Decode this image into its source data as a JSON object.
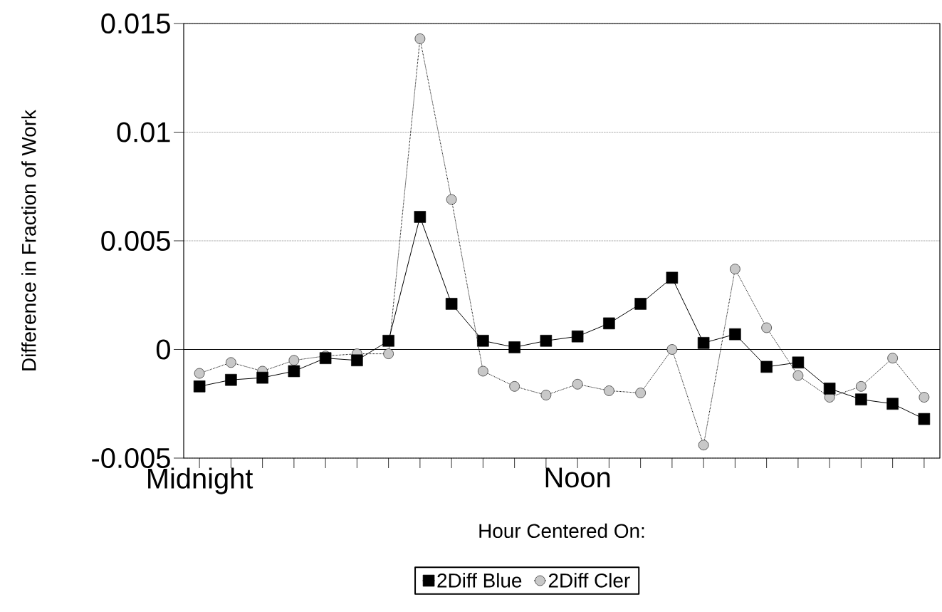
{
  "chart_data": {
    "type": "line",
    "xlabel": "Hour Centered On:",
    "ylabel": "Difference in Fraction of Work",
    "categories": [
      "Midnight",
      null,
      null,
      null,
      null,
      null,
      null,
      null,
      null,
      null,
      null,
      null,
      "Noon",
      null,
      null,
      null,
      null,
      null,
      null,
      null,
      null,
      null,
      null,
      null
    ],
    "series": [
      {
        "name": "2Diff Blue",
        "color": "#000000",
        "marker": "square",
        "line_style": "solid",
        "values": [
          -0.0017,
          -0.0014,
          -0.0013,
          -0.001,
          -0.0004,
          -0.0005,
          0.0004,
          0.0061,
          0.0021,
          0.0004,
          0.0001,
          0.0004,
          0.0006,
          0.0012,
          0.0021,
          0.0033,
          0.0003,
          0.0007,
          -0.0008,
          -0.0006,
          -0.0018,
          -0.0023,
          -0.0025,
          -0.0032
        ]
      },
      {
        "name": "2Diff Cler",
        "color": "#c8c8c8",
        "marker": "circle",
        "line_style": "dotted",
        "values": [
          -0.0011,
          -0.0006,
          -0.001,
          -0.0005,
          -0.0003,
          -0.0002,
          -0.0002,
          0.0143,
          0.0069,
          -0.001,
          -0.0017,
          -0.0021,
          -0.0016,
          -0.0019,
          -0.002,
          0.0,
          -0.0044,
          0.0037,
          0.001,
          -0.0012,
          -0.0022,
          -0.0017,
          -0.0004,
          -0.0022
        ]
      }
    ],
    "ylim": [
      -0.005,
      0.015
    ],
    "yticks": [
      -0.005,
      0,
      0.005,
      0.01,
      0.015
    ],
    "grid": "y",
    "legend": "bottom",
    "ref_lines": [
      {
        "axis": "y",
        "value": 0
      }
    ]
  }
}
